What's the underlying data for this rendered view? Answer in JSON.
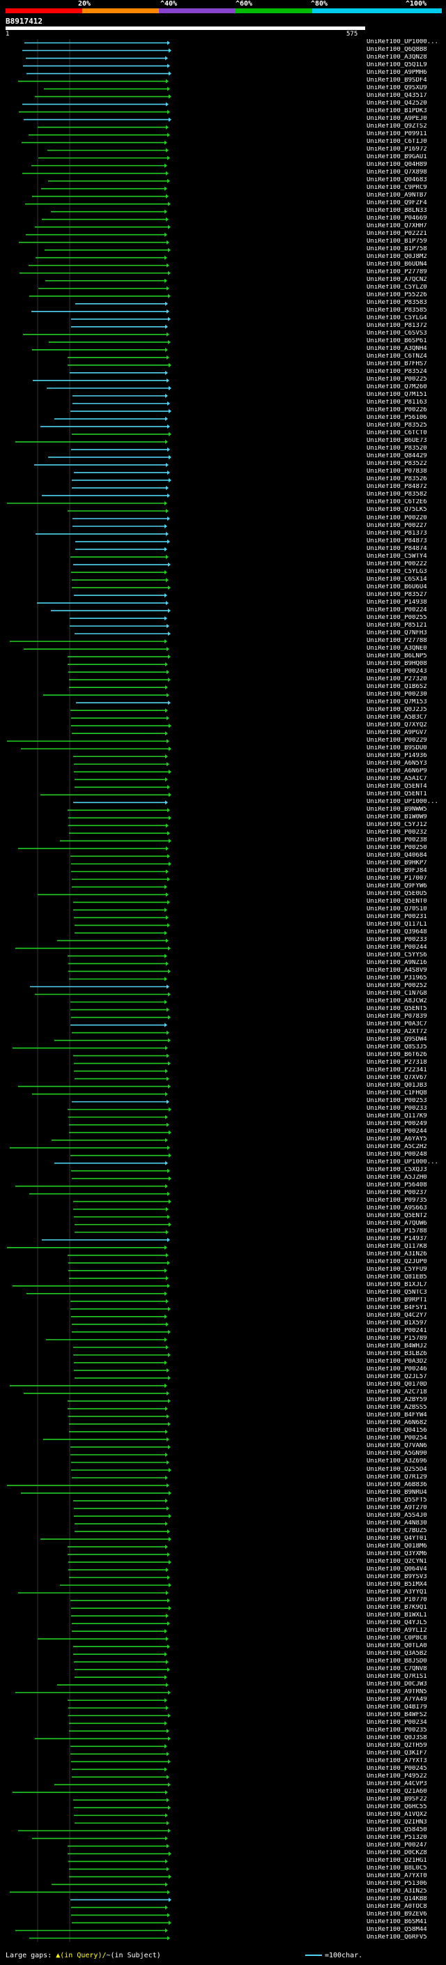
{
  "scale": {
    "labels": [
      "20%",
      "^40%",
      "^60%",
      "^80%",
      "^100%"
    ],
    "colors": [
      "#ff0000",
      "#ff8800",
      "#8844cc",
      "#00bb00",
      "#00ccee"
    ]
  },
  "query": {
    "id": "B8917412",
    "start": "1",
    "end": "575"
  },
  "colors": {
    "long_hit": "#4fd3f0",
    "short_hit": "#22cc22",
    "gap": "#ffff00"
  },
  "hits": [
    {
      "label": "UniRef100_UP1000...",
      "kind": "c"
    },
    {
      "label": "UniRef100_Q6Q8B8",
      "kind": "c"
    },
    {
      "label": "UniRef100_A3QN28",
      "kind": "c"
    },
    {
      "label": "UniRef100_Q5Q1L9",
      "kind": "c"
    },
    {
      "label": "UniRef100_A9PMH6",
      "kind": "c"
    },
    {
      "label": "UniRef100_B9SDF4",
      "kind": "g"
    },
    {
      "label": "UniRef100_Q9SXU9",
      "kind": "g"
    },
    {
      "label": "UniRef100_Q43517",
      "kind": "g"
    },
    {
      "label": "UniRef100_Q42520",
      "kind": "c"
    },
    {
      "label": "UniRef100_B1PDK3",
      "kind": "g"
    },
    {
      "label": "UniRef100_A9PEJ0",
      "kind": "c"
    },
    {
      "label": "UniRef100_Q9ZTS2",
      "kind": "g"
    },
    {
      "label": "UniRef100_P09911",
      "kind": "g"
    },
    {
      "label": "UniRef100_C6TIJ0",
      "kind": "g"
    },
    {
      "label": "UniRef100_P16972",
      "kind": "g"
    },
    {
      "label": "UniRef100_B9GAU1",
      "kind": "g"
    },
    {
      "label": "UniRef100_Q04H89",
      "kind": "g"
    },
    {
      "label": "UniRef100_Q7X898",
      "kind": "g"
    },
    {
      "label": "UniRef100_Q04683",
      "kind": "g"
    },
    {
      "label": "UniRef100_C9PRC9",
      "kind": "g"
    },
    {
      "label": "UniRef100_A9NTB7",
      "kind": "g"
    },
    {
      "label": "UniRef100_Q9FZF4",
      "kind": "g"
    },
    {
      "label": "UniRef100_B8LN33",
      "kind": "g"
    },
    {
      "label": "UniRef100_P04669",
      "kind": "g"
    },
    {
      "label": "UniRef100_Q7XHH7",
      "kind": "g"
    },
    {
      "label": "UniRef100_P02221",
      "kind": "g"
    },
    {
      "label": "UniRef100_B1P759",
      "kind": "g"
    },
    {
      "label": "UniRef100_B1P758",
      "kind": "g"
    },
    {
      "label": "UniRef100_Q0J8M2",
      "kind": "g"
    },
    {
      "label": "UniRef100_B6UDN4",
      "kind": "g"
    },
    {
      "label": "UniRef100_P27789",
      "kind": "g"
    },
    {
      "label": "UniRef100_A7QCN2",
      "kind": "g"
    },
    {
      "label": "UniRef100_C5YLZ0",
      "kind": "g"
    },
    {
      "label": "UniRef100_P55226",
      "kind": "g"
    },
    {
      "label": "UniRef100_P83583",
      "kind": "c"
    },
    {
      "label": "UniRef100_P83585",
      "kind": "c"
    },
    {
      "label": "UniRef100_C5YLG4",
      "kind": "c"
    },
    {
      "label": "UniRef100_P81372",
      "kind": "c"
    },
    {
      "label": "UniRef100_C6SVS3",
      "kind": "g"
    },
    {
      "label": "UniRef100_B6SP61",
      "kind": "g"
    },
    {
      "label": "UniRef100_A3QNH4",
      "kind": "g"
    },
    {
      "label": "UniRef100_C6TNZ4",
      "kind": "g"
    },
    {
      "label": "UniRef100_B7FHS7",
      "kind": "g"
    },
    {
      "label": "UniRef100_P83524",
      "kind": "c"
    },
    {
      "label": "UniRef100_P00225",
      "kind": "c"
    },
    {
      "label": "UniRef100_Q7M260",
      "kind": "c"
    },
    {
      "label": "UniRef100_Q7M151",
      "kind": "c"
    },
    {
      "label": "UniRef100_P81163",
      "kind": "c"
    },
    {
      "label": "UniRef100_P00226",
      "kind": "c"
    },
    {
      "label": "UniRef100_P56106",
      "kind": "c"
    },
    {
      "label": "UniRef100_P83525",
      "kind": "c"
    },
    {
      "label": "UniRef100_C6TCT0",
      "kind": "g"
    },
    {
      "label": "UniRef100_B6UE73",
      "kind": "g"
    },
    {
      "label": "UniRef100_P83520",
      "kind": "c"
    },
    {
      "label": "UniRef100_Q84429",
      "kind": "c"
    },
    {
      "label": "UniRef100_P83522",
      "kind": "c"
    },
    {
      "label": "UniRef100_P07838",
      "kind": "c"
    },
    {
      "label": "UniRef100_P83526",
      "kind": "c"
    },
    {
      "label": "UniRef100_P84872",
      "kind": "c"
    },
    {
      "label": "UniRef100_P83582",
      "kind": "c"
    },
    {
      "label": "UniRef100_C6T2E6",
      "kind": "g"
    },
    {
      "label": "UniRef100_Q75LK5",
      "kind": "g"
    },
    {
      "label": "UniRef100_P00220",
      "kind": "c"
    },
    {
      "label": "UniRef100_P00227",
      "kind": "c"
    },
    {
      "label": "UniRef100_P81373",
      "kind": "c"
    },
    {
      "label": "UniRef100_P84873",
      "kind": "c"
    },
    {
      "label": "UniRef100_P84874",
      "kind": "c"
    },
    {
      "label": "UniRef100_C5WTY4",
      "kind": "g"
    },
    {
      "label": "UniRef100_P00222",
      "kind": "c"
    },
    {
      "label": "UniRef100_C5YLG3",
      "kind": "g"
    },
    {
      "label": "UniRef100_C6SX14",
      "kind": "g"
    },
    {
      "label": "UniRef100_B6U6U4",
      "kind": "g"
    },
    {
      "label": "UniRef100_P83527",
      "kind": "c"
    },
    {
      "label": "UniRef100_P14938",
      "kind": "c"
    },
    {
      "label": "UniRef100_P00224",
      "kind": "c"
    },
    {
      "label": "UniRef100_P00255",
      "kind": "c"
    },
    {
      "label": "UniRef100_P85121",
      "kind": "c"
    },
    {
      "label": "UniRef100_Q7NFH3",
      "kind": "c"
    },
    {
      "label": "UniRef100_P27788",
      "kind": "g"
    },
    {
      "label": "UniRef100_A3QNE0",
      "kind": "g"
    },
    {
      "label": "UniRef100_B6LNP5",
      "kind": "g"
    },
    {
      "label": "UniRef100_B9HQ08",
      "kind": "g"
    },
    {
      "label": "UniRef100_P00243",
      "kind": "g"
    },
    {
      "label": "UniRef100_P27320",
      "kind": "g"
    },
    {
      "label": "UniRef100_Q1B6S2",
      "kind": "g"
    },
    {
      "label": "UniRef100_P00230",
      "kind": "g"
    },
    {
      "label": "UniRef100_Q7M153",
      "kind": "c"
    },
    {
      "label": "UniRef100_Q0J2J5",
      "kind": "g"
    },
    {
      "label": "UniRef100_A5B3C7",
      "kind": "g"
    },
    {
      "label": "UniRef100_Q7XYQ2",
      "kind": "g"
    },
    {
      "label": "UniRef100_A9PGV7",
      "kind": "g"
    },
    {
      "label": "UniRef100_P00229",
      "kind": "g"
    },
    {
      "label": "UniRef100_B9SDU0",
      "kind": "g"
    },
    {
      "label": "UniRef100_P14936",
      "kind": "g"
    },
    {
      "label": "UniRef100_A6N5Y3",
      "kind": "g"
    },
    {
      "label": "UniRef100_A6N6P9",
      "kind": "g"
    },
    {
      "label": "UniRef100_A5AIC7",
      "kind": "g"
    },
    {
      "label": "UniRef100_Q5ENT4",
      "kind": "g"
    },
    {
      "label": "UniRef100_Q5ENT1",
      "kind": "g"
    },
    {
      "label": "UniRef100_UP1000...",
      "kind": "c"
    },
    {
      "label": "UniRef100_B9NWW5",
      "kind": "g"
    },
    {
      "label": "UniRef100_B1W0W9",
      "kind": "g"
    },
    {
      "label": "UniRef100_C5YJ12",
      "kind": "g"
    },
    {
      "label": "UniRef100_P00232",
      "kind": "g"
    },
    {
      "label": "UniRef100_P00238",
      "kind": "g"
    },
    {
      "label": "UniRef100_P00250",
      "kind": "g"
    },
    {
      "label": "UniRef100_Q40684",
      "kind": "g"
    },
    {
      "label": "UniRef100_B9HKP7",
      "kind": "g"
    },
    {
      "label": "UniRef100_B9FJ84",
      "kind": "g"
    },
    {
      "label": "UniRef100_P17007",
      "kind": "g"
    },
    {
      "label": "UniRef100_Q9FYW6",
      "kind": "g"
    },
    {
      "label": "UniRef100_Q5E0U5",
      "kind": "g"
    },
    {
      "label": "UniRef100_Q5ENT0",
      "kind": "g"
    },
    {
      "label": "UniRef100_Q70S10",
      "kind": "g"
    },
    {
      "label": "UniRef100_P00231",
      "kind": "g"
    },
    {
      "label": "UniRef100_Q117L1",
      "kind": "g"
    },
    {
      "label": "UniRef100_Q39648",
      "kind": "g"
    },
    {
      "label": "UniRef100_P00233",
      "kind": "g"
    },
    {
      "label": "UniRef100_P00244",
      "kind": "g"
    },
    {
      "label": "UniRef100_C5YYS6",
      "kind": "g"
    },
    {
      "label": "UniRef100_A9NZ16",
      "kind": "g"
    },
    {
      "label": "UniRef100_A4S8V9",
      "kind": "g"
    },
    {
      "label": "UniRef100_P31965",
      "kind": "g"
    },
    {
      "label": "UniRef100_P00252",
      "kind": "c"
    },
    {
      "label": "UniRef100_C1N7G8",
      "kind": "g"
    },
    {
      "label": "UniRef100_A8JCW2",
      "kind": "g"
    },
    {
      "label": "UniRef100_Q5ENT5",
      "kind": "g"
    },
    {
      "label": "UniRef100_P07839",
      "kind": "g"
    },
    {
      "label": "UniRef100_P0A3C7",
      "kind": "c"
    },
    {
      "label": "UniRef100_A2XT72",
      "kind": "g"
    },
    {
      "label": "UniRef100_Q9SDW4",
      "kind": "g"
    },
    {
      "label": "UniRef100_Q8S3J5",
      "kind": "g"
    },
    {
      "label": "UniRef100_B6T626",
      "kind": "g"
    },
    {
      "label": "UniRef100_P27318",
      "kind": "g"
    },
    {
      "label": "UniRef100_P22341",
      "kind": "g"
    },
    {
      "label": "UniRef100_Q7XV67",
      "kind": "g"
    },
    {
      "label": "UniRef100_Q01JB3",
      "kind": "g"
    },
    {
      "label": "UniRef100_C1FHQ8",
      "kind": "g"
    },
    {
      "label": "UniRef100_P00253",
      "kind": "c"
    },
    {
      "label": "UniRef100_P00233",
      "kind": "g"
    },
    {
      "label": "UniRef100_Q117K9",
      "kind": "g"
    },
    {
      "label": "UniRef100_P00249",
      "kind": "g"
    },
    {
      "label": "UniRef100_P00244",
      "kind": "g"
    },
    {
      "label": "UniRef100_A6YAY5",
      "kind": "g"
    },
    {
      "label": "UniRef100_A5C2H2",
      "kind": "g"
    },
    {
      "label": "UniRef100_P00248",
      "kind": "g"
    },
    {
      "label": "UniRef100_UP1000...",
      "kind": "c"
    },
    {
      "label": "UniRef100_C5XQJ3",
      "kind": "g"
    },
    {
      "label": "UniRef100_A5JZH0",
      "kind": "g"
    },
    {
      "label": "UniRef100_P56408",
      "kind": "g"
    },
    {
      "label": "UniRef100_P00237",
      "kind": "g"
    },
    {
      "label": "UniRef100_P09735",
      "kind": "g"
    },
    {
      "label": "UniRef100_A9S663",
      "kind": "g"
    },
    {
      "label": "UniRef100_Q5ENT2",
      "kind": "g"
    },
    {
      "label": "UniRef100_A7QUW6",
      "kind": "g"
    },
    {
      "label": "UniRef100_P15788",
      "kind": "g"
    },
    {
      "label": "UniRef100_P14937",
      "kind": "c"
    },
    {
      "label": "UniRef100_Q117K8",
      "kind": "g"
    },
    {
      "label": "UniRef100_A3IN26",
      "kind": "g"
    },
    {
      "label": "UniRef100_Q2JUP0",
      "kind": "g"
    },
    {
      "label": "UniRef100_C5YFU9",
      "kind": "g"
    },
    {
      "label": "UniRef100_Q81EB5",
      "kind": "g"
    },
    {
      "label": "UniRef100_B1XJL7",
      "kind": "g"
    },
    {
      "label": "UniRef100_Q5NTC3",
      "kind": "g"
    },
    {
      "label": "UniRef100_B9RPT1",
      "kind": "g"
    },
    {
      "label": "UniRef100_B4FSY1",
      "kind": "g"
    },
    {
      "label": "UniRef100_Q4C2Y7",
      "kind": "g"
    },
    {
      "label": "UniRef100_B1X597",
      "kind": "g"
    },
    {
      "label": "UniRef100_P00241",
      "kind": "g"
    },
    {
      "label": "UniRef100_P15789",
      "kind": "g"
    },
    {
      "label": "UniRef100_B4WHJ2",
      "kind": "g"
    },
    {
      "label": "UniRef100_B3LBZ6",
      "kind": "g"
    },
    {
      "label": "UniRef100_P0A3D2",
      "kind": "g"
    },
    {
      "label": "UniRef100_P00246",
      "kind": "g"
    },
    {
      "label": "UniRef100_Q2JL57",
      "kind": "g"
    },
    {
      "label": "UniRef100_Q0170D",
      "kind": "g"
    },
    {
      "label": "UniRef100_A2C718",
      "kind": "g"
    },
    {
      "label": "UniRef100_A2BY59",
      "kind": "g"
    },
    {
      "label": "UniRef100_A2BSS5",
      "kind": "g"
    },
    {
      "label": "UniRef100_B4FYW4",
      "kind": "g"
    },
    {
      "label": "UniRef100_A6N682",
      "kind": "g"
    },
    {
      "label": "UniRef100_Q04156",
      "kind": "g"
    },
    {
      "label": "UniRef100_P00254",
      "kind": "g"
    },
    {
      "label": "UniRef100_Q7VAN6",
      "kind": "g"
    },
    {
      "label": "UniRef100_A5GN90",
      "kind": "g"
    },
    {
      "label": "UniRef100_A3Z696",
      "kind": "g"
    },
    {
      "label": "UniRef100_Q2S5D4",
      "kind": "g"
    },
    {
      "label": "UniRef100_Q7R129",
      "kind": "g"
    },
    {
      "label": "UniRef100_A6B836",
      "kind": "g"
    },
    {
      "label": "UniRef100_B9NRU4",
      "kind": "g"
    },
    {
      "label": "UniRef100_Q5SFT5",
      "kind": "g"
    },
    {
      "label": "UniRef100_A9T270",
      "kind": "g"
    },
    {
      "label": "UniRef100_A5S4J0",
      "kind": "g"
    },
    {
      "label": "UniRef100_A4N830",
      "kind": "g"
    },
    {
      "label": "UniRef100_C7BUZ5",
      "kind": "g"
    },
    {
      "label": "UniRef100_Q4YT01",
      "kind": "g"
    },
    {
      "label": "UniRef100_Q018M6",
      "kind": "g"
    },
    {
      "label": "UniRef100_Q3YXM6",
      "kind": "g"
    },
    {
      "label": "UniRef100_Q2CYN1",
      "kind": "g"
    },
    {
      "label": "UniRef100_Q064V4",
      "kind": "g"
    },
    {
      "label": "UniRef100_B9YSV3",
      "kind": "g"
    },
    {
      "label": "UniRef100_B5IMX4",
      "kind": "g"
    },
    {
      "label": "UniRef100_A3YYQ1",
      "kind": "g"
    },
    {
      "label": "UniRef100_P10770",
      "kind": "g"
    },
    {
      "label": "UniRef100_B7K9Q1",
      "kind": "g"
    },
    {
      "label": "UniRef100_B1WXL1",
      "kind": "g"
    },
    {
      "label": "UniRef100_Q4YJL5",
      "kind": "g"
    },
    {
      "label": "UniRef100_A9YLI2",
      "kind": "g"
    },
    {
      "label": "UniRef100_C0P8C8",
      "kind": "g"
    },
    {
      "label": "UniRef100_Q0TLA0",
      "kind": "g"
    },
    {
      "label": "UniRef100_Q3A5B2",
      "kind": "g"
    },
    {
      "label": "UniRef100_B8JSD0",
      "kind": "g"
    },
    {
      "label": "UniRef100_C7QNV8",
      "kind": "g"
    },
    {
      "label": "UniRef100_Q7R1S1",
      "kind": "g"
    },
    {
      "label": "UniRef100_D0CJW3",
      "kind": "g"
    },
    {
      "label": "UniRef100_A9TRN5",
      "kind": "g"
    },
    {
      "label": "UniRef100_A7YA49",
      "kind": "g"
    },
    {
      "label": "UniRef100_Q4BI79",
      "kind": "g"
    },
    {
      "label": "UniRef100_B4WFS2",
      "kind": "g"
    },
    {
      "label": "UniRef100_P00234",
      "kind": "g"
    },
    {
      "label": "UniRef100_P00235",
      "kind": "g"
    },
    {
      "label": "UniRef100_Q0J3S8",
      "kind": "g"
    },
    {
      "label": "UniRef100_Q2TH59",
      "kind": "g"
    },
    {
      "label": "UniRef100_Q3KIF7",
      "kind": "g"
    },
    {
      "label": "UniRef100_A7YXT3",
      "kind": "g"
    },
    {
      "label": "UniRef100_P00245",
      "kind": "g"
    },
    {
      "label": "UniRef100_P49522",
      "kind": "g"
    },
    {
      "label": "UniRef100_A4CVP3",
      "kind": "g"
    },
    {
      "label": "UniRef100_Q21A60",
      "kind": "g"
    },
    {
      "label": "UniRef100_B9SF22",
      "kind": "g"
    },
    {
      "label": "UniRef100_Q6HC55",
      "kind": "g"
    },
    {
      "label": "UniRef100_A1VQX2",
      "kind": "g"
    },
    {
      "label": "UniRef100_Q2IHN3",
      "kind": "g"
    },
    {
      "label": "UniRef100_Q58450",
      "kind": "g"
    },
    {
      "label": "UniRef100_P51320",
      "kind": "g"
    },
    {
      "label": "UniRef100_P00247",
      "kind": "g"
    },
    {
      "label": "UniRef100_D0CKZ8",
      "kind": "g"
    },
    {
      "label": "UniRef100_Q21HG1",
      "kind": "g"
    },
    {
      "label": "UniRef100_B8L0C5",
      "kind": "g"
    },
    {
      "label": "UniRef100_A7YXT0",
      "kind": "g"
    },
    {
      "label": "UniRef100_P51306",
      "kind": "g"
    },
    {
      "label": "UniRef100_A3IN25",
      "kind": "g"
    },
    {
      "label": "UniRef100_Q14KB8",
      "kind": "c"
    },
    {
      "label": "UniRef100_A0TOC8",
      "kind": "g"
    },
    {
      "label": "UniRef100_B9ZEV6",
      "kind": "g"
    },
    {
      "label": "UniRef100_B6SM41",
      "kind": "g"
    },
    {
      "label": "UniRef100_Q58M44",
      "kind": "g"
    },
    {
      "label": "UniRef100_Q6RFV5",
      "kind": "g"
    }
  ],
  "footer": {
    "large_gaps_label": "Large gaps: ",
    "gap_query_text": "▲(in Query)/",
    "gap_subject_text": "~(in Subject)",
    "legend_text": "=100char."
  }
}
